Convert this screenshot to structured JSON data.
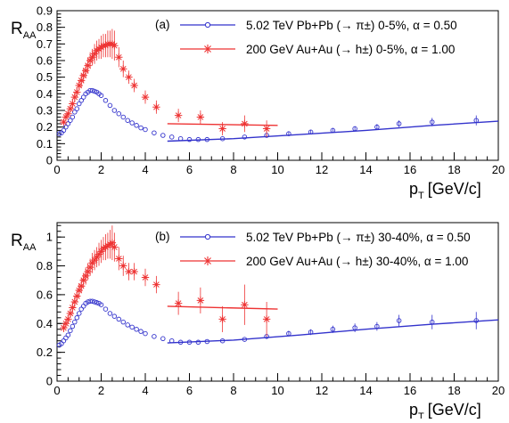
{
  "chart_data": [
    {
      "type": "scatter",
      "panel_label": "(a)",
      "ylabel_main": "R",
      "ylabel_sub": "AA",
      "xlabel_main": "p",
      "xlabel_sub": "T",
      "xlabel_unit": "[GeV/c]",
      "xlim": [
        0,
        20
      ],
      "ylim": [
        0,
        0.9
      ],
      "xticks": [
        "0",
        "2",
        "4",
        "6",
        "8",
        "10",
        "12",
        "14",
        "16",
        "18",
        "20"
      ],
      "yticks": [
        "0",
        "0.1",
        "0.2",
        "0.3",
        "0.4",
        "0.5",
        "0.6",
        "0.7",
        "0.8",
        "0.9"
      ],
      "ytick_values": [
        0,
        0.1,
        0.2,
        0.3,
        0.4,
        0.5,
        0.6,
        0.7,
        0.8,
        0.9
      ],
      "legend_position": "top-right",
      "series": [
        {
          "name": "5.02 TeV Pb+Pb (→ π±) 0-5%, α = 0.50",
          "color": "#3333cc",
          "marker": "open-circle",
          "points": [
            [
              0.1,
              0.16,
              0.01
            ],
            [
              0.2,
              0.165,
              0.01
            ],
            [
              0.3,
              0.18,
              0.01
            ],
            [
              0.4,
              0.2,
              0.01
            ],
            [
              0.5,
              0.22,
              0.01
            ],
            [
              0.6,
              0.24,
              0.01
            ],
            [
              0.7,
              0.26,
              0.01
            ],
            [
              0.8,
              0.29,
              0.01
            ],
            [
              0.9,
              0.31,
              0.01
            ],
            [
              1.0,
              0.34,
              0.01
            ],
            [
              1.1,
              0.36,
              0.01
            ],
            [
              1.2,
              0.38,
              0.01
            ],
            [
              1.3,
              0.4,
              0.01
            ],
            [
              1.4,
              0.41,
              0.01
            ],
            [
              1.5,
              0.42,
              0.01
            ],
            [
              1.6,
              0.42,
              0.01
            ],
            [
              1.7,
              0.415,
              0.01
            ],
            [
              1.8,
              0.41,
              0.01
            ],
            [
              1.9,
              0.4,
              0.01
            ],
            [
              2.0,
              0.39,
              0.01
            ],
            [
              2.2,
              0.36,
              0.01
            ],
            [
              2.4,
              0.33,
              0.01
            ],
            [
              2.6,
              0.3,
              0.01
            ],
            [
              2.8,
              0.28,
              0.01
            ],
            [
              3.0,
              0.26,
              0.01
            ],
            [
              3.2,
              0.24,
              0.01
            ],
            [
              3.4,
              0.225,
              0.01
            ],
            [
              3.6,
              0.21,
              0.01
            ],
            [
              3.8,
              0.195,
              0.01
            ],
            [
              4.0,
              0.185,
              0.01
            ],
            [
              4.4,
              0.165,
              0.01
            ],
            [
              4.8,
              0.15,
              0.01
            ],
            [
              5.2,
              0.14,
              0.01
            ],
            [
              5.6,
              0.13,
              0.01
            ],
            [
              6.0,
              0.125,
              0.01
            ],
            [
              6.4,
              0.125,
              0.01
            ],
            [
              6.8,
              0.125,
              0.01
            ],
            [
              7.5,
              0.13,
              0.01
            ],
            [
              8.5,
              0.14,
              0.01
            ],
            [
              9.5,
              0.15,
              0.012
            ],
            [
              10.5,
              0.16,
              0.012
            ],
            [
              11.5,
              0.17,
              0.012
            ],
            [
              12.5,
              0.18,
              0.014
            ],
            [
              13.5,
              0.19,
              0.015
            ],
            [
              14.5,
              0.2,
              0.018
            ],
            [
              15.5,
              0.22,
              0.02
            ],
            [
              17.0,
              0.23,
              0.025
            ],
            [
              19.0,
              0.24,
              0.03
            ]
          ],
          "fit_line": [
            [
              5.0,
              0.115
            ],
            [
              8.0,
              0.13
            ],
            [
              11.0,
              0.155
            ],
            [
              14.0,
              0.18
            ],
            [
              17.0,
              0.21
            ],
            [
              20.0,
              0.235
            ]
          ]
        },
        {
          "name": "200 GeV Au+Au (→ h±) 0-5%, α = 1.00",
          "color": "#ee3333",
          "marker": "star",
          "points": [
            [
              0.3,
              0.23,
              0.02
            ],
            [
              0.4,
              0.26,
              0.02
            ],
            [
              0.5,
              0.28,
              0.02
            ],
            [
              0.6,
              0.31,
              0.02
            ],
            [
              0.7,
              0.34,
              0.03
            ],
            [
              0.8,
              0.38,
              0.03
            ],
            [
              0.9,
              0.41,
              0.03
            ],
            [
              1.0,
              0.45,
              0.03
            ],
            [
              1.1,
              0.48,
              0.04
            ],
            [
              1.2,
              0.51,
              0.04
            ],
            [
              1.3,
              0.54,
              0.04
            ],
            [
              1.4,
              0.57,
              0.05
            ],
            [
              1.5,
              0.6,
              0.05
            ],
            [
              1.6,
              0.62,
              0.05
            ],
            [
              1.7,
              0.64,
              0.06
            ],
            [
              1.8,
              0.66,
              0.06
            ],
            [
              1.9,
              0.67,
              0.06
            ],
            [
              2.0,
              0.68,
              0.07
            ],
            [
              2.1,
              0.69,
              0.07
            ],
            [
              2.2,
              0.69,
              0.07
            ],
            [
              2.3,
              0.7,
              0.08
            ],
            [
              2.4,
              0.7,
              0.08
            ],
            [
              2.5,
              0.7,
              0.09
            ],
            [
              2.6,
              0.69,
              0.09
            ],
            [
              2.8,
              0.62,
              0.06
            ],
            [
              3.0,
              0.55,
              0.05
            ],
            [
              3.25,
              0.5,
              0.04
            ],
            [
              3.5,
              0.45,
              0.04
            ],
            [
              4.0,
              0.38,
              0.04
            ],
            [
              4.5,
              0.32,
              0.04
            ],
            [
              5.5,
              0.27,
              0.04
            ],
            [
              6.5,
              0.26,
              0.04
            ],
            [
              7.5,
              0.19,
              0.04
            ],
            [
              8.5,
              0.22,
              0.05
            ],
            [
              9.5,
              0.19,
              0.05
            ]
          ],
          "fit_line": [
            [
              5.0,
              0.22
            ],
            [
              10.0,
              0.21
            ]
          ]
        }
      ]
    },
    {
      "type": "scatter",
      "panel_label": "(b)",
      "ylabel_main": "R",
      "ylabel_sub": "AA",
      "xlabel_main": "p",
      "xlabel_sub": "T",
      "xlabel_unit": "[GeV/c]",
      "xlim": [
        0,
        20
      ],
      "ylim": [
        0,
        1.1
      ],
      "xticks": [
        "0",
        "2",
        "4",
        "6",
        "8",
        "10",
        "12",
        "14",
        "16",
        "18",
        "20"
      ],
      "yticks": [
        "0",
        "0.2",
        "0.4",
        "0.6",
        "0.8",
        "1"
      ],
      "ytick_values": [
        0,
        0.2,
        0.4,
        0.6,
        0.8,
        1.0
      ],
      "legend_position": "top-right",
      "series": [
        {
          "name": "5.02 TeV Pb+Pb (→ π±) 30-40%, α = 0.50",
          "color": "#3333cc",
          "marker": "open-circle",
          "points": [
            [
              0.1,
              0.25,
              0.01
            ],
            [
              0.2,
              0.26,
              0.01
            ],
            [
              0.3,
              0.28,
              0.01
            ],
            [
              0.4,
              0.3,
              0.01
            ],
            [
              0.5,
              0.32,
              0.01
            ],
            [
              0.6,
              0.35,
              0.01
            ],
            [
              0.7,
              0.38,
              0.01
            ],
            [
              0.8,
              0.41,
              0.01
            ],
            [
              0.9,
              0.44,
              0.01
            ],
            [
              1.0,
              0.47,
              0.01
            ],
            [
              1.1,
              0.5,
              0.01
            ],
            [
              1.2,
              0.52,
              0.01
            ],
            [
              1.3,
              0.54,
              0.01
            ],
            [
              1.4,
              0.55,
              0.01
            ],
            [
              1.5,
              0.555,
              0.01
            ],
            [
              1.6,
              0.555,
              0.01
            ],
            [
              1.7,
              0.55,
              0.01
            ],
            [
              1.8,
              0.545,
              0.01
            ],
            [
              1.9,
              0.54,
              0.01
            ],
            [
              2.0,
              0.53,
              0.01
            ],
            [
              2.2,
              0.5,
              0.01
            ],
            [
              2.4,
              0.47,
              0.01
            ],
            [
              2.6,
              0.45,
              0.01
            ],
            [
              2.8,
              0.43,
              0.01
            ],
            [
              3.0,
              0.41,
              0.01
            ],
            [
              3.2,
              0.39,
              0.01
            ],
            [
              3.4,
              0.375,
              0.01
            ],
            [
              3.6,
              0.36,
              0.01
            ],
            [
              3.8,
              0.345,
              0.01
            ],
            [
              4.0,
              0.33,
              0.01
            ],
            [
              4.4,
              0.31,
              0.01
            ],
            [
              4.8,
              0.295,
              0.01
            ],
            [
              5.2,
              0.28,
              0.01
            ],
            [
              5.6,
              0.27,
              0.01
            ],
            [
              6.0,
              0.27,
              0.01
            ],
            [
              6.4,
              0.27,
              0.01
            ],
            [
              6.8,
              0.275,
              0.01
            ],
            [
              7.5,
              0.28,
              0.01
            ],
            [
              8.5,
              0.29,
              0.012
            ],
            [
              9.5,
              0.31,
              0.015
            ],
            [
              10.5,
              0.33,
              0.02
            ],
            [
              11.5,
              0.34,
              0.02
            ],
            [
              12.5,
              0.36,
              0.025
            ],
            [
              13.5,
              0.37,
              0.03
            ],
            [
              14.5,
              0.38,
              0.03
            ],
            [
              15.5,
              0.42,
              0.04
            ],
            [
              17.0,
              0.41,
              0.05
            ],
            [
              19.0,
              0.42,
              0.06
            ]
          ],
          "fit_line": [
            [
              5.0,
              0.265
            ],
            [
              8.0,
              0.285
            ],
            [
              11.0,
              0.32
            ],
            [
              14.0,
              0.36
            ],
            [
              17.0,
              0.395
            ],
            [
              20.0,
              0.425
            ]
          ]
        },
        {
          "name": "200 GeV Au+Au (→ h±) 30-40%, α = 1.00",
          "color": "#ee3333",
          "marker": "star",
          "points": [
            [
              0.3,
              0.37,
              0.03
            ],
            [
              0.4,
              0.4,
              0.03
            ],
            [
              0.5,
              0.43,
              0.03
            ],
            [
              0.6,
              0.47,
              0.03
            ],
            [
              0.7,
              0.51,
              0.04
            ],
            [
              0.8,
              0.55,
              0.04
            ],
            [
              0.9,
              0.59,
              0.04
            ],
            [
              1.0,
              0.63,
              0.05
            ],
            [
              1.1,
              0.66,
              0.05
            ],
            [
              1.2,
              0.7,
              0.05
            ],
            [
              1.3,
              0.73,
              0.06
            ],
            [
              1.4,
              0.76,
              0.06
            ],
            [
              1.5,
              0.79,
              0.06
            ],
            [
              1.6,
              0.82,
              0.07
            ],
            [
              1.7,
              0.84,
              0.07
            ],
            [
              1.8,
              0.86,
              0.07
            ],
            [
              1.9,
              0.88,
              0.08
            ],
            [
              2.0,
              0.9,
              0.08
            ],
            [
              2.1,
              0.92,
              0.08
            ],
            [
              2.2,
              0.93,
              0.09
            ],
            [
              2.3,
              0.94,
              0.09
            ],
            [
              2.4,
              0.95,
              0.1
            ],
            [
              2.5,
              0.96,
              0.12
            ],
            [
              2.6,
              0.93,
              0.1
            ],
            [
              2.8,
              0.85,
              0.08
            ],
            [
              3.0,
              0.8,
              0.07
            ],
            [
              3.25,
              0.76,
              0.06
            ],
            [
              3.5,
              0.76,
              0.06
            ],
            [
              4.0,
              0.72,
              0.06
            ],
            [
              4.5,
              0.67,
              0.06
            ],
            [
              5.5,
              0.54,
              0.08
            ],
            [
              6.5,
              0.56,
              0.09
            ],
            [
              7.5,
              0.43,
              0.09
            ],
            [
              8.5,
              0.53,
              0.14
            ],
            [
              9.5,
              0.43,
              0.12
            ]
          ],
          "fit_line": [
            [
              5.0,
              0.52
            ],
            [
              10.0,
              0.5
            ]
          ]
        }
      ]
    }
  ]
}
